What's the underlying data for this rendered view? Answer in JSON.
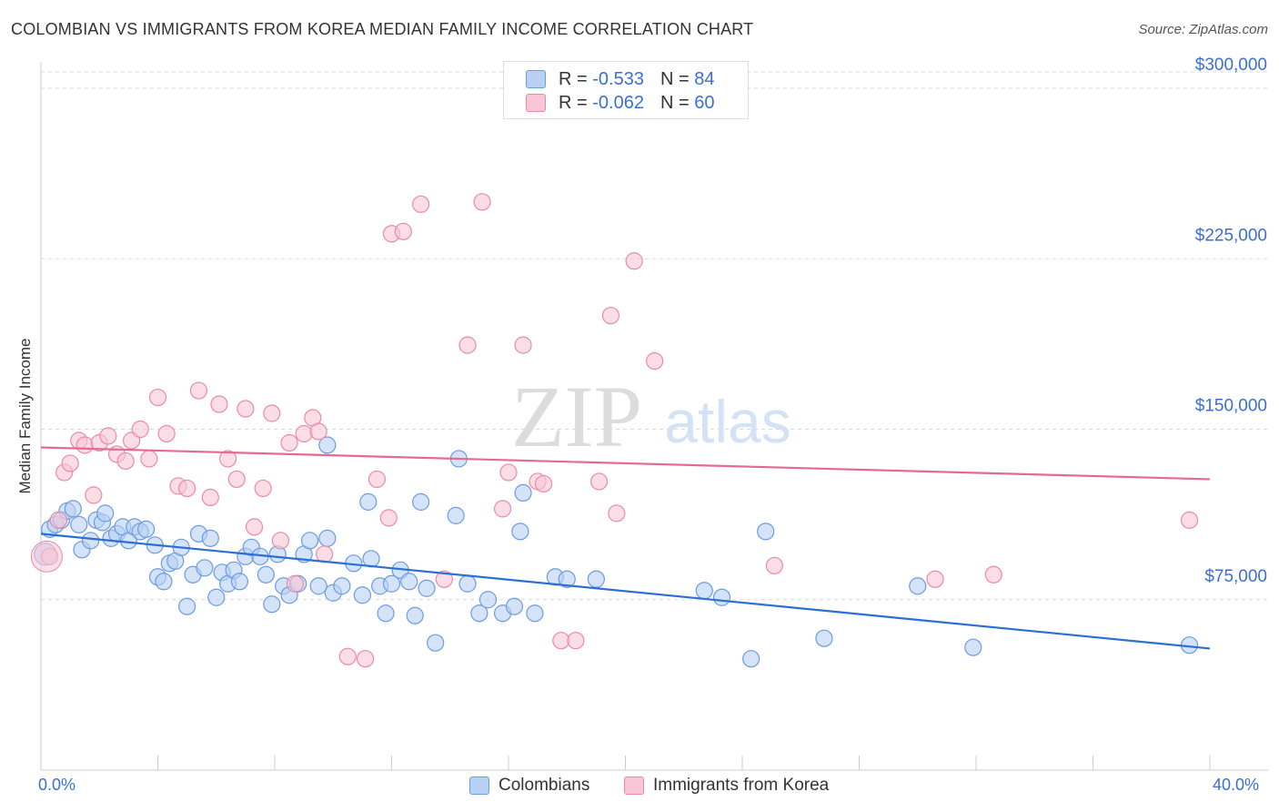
{
  "title": "COLOMBIAN VS IMMIGRANTS FROM KOREA MEDIAN FAMILY INCOME CORRELATION CHART",
  "source": "Source: ZipAtlas.com",
  "watermark": {
    "zip": "ZIP",
    "atlas": "atlas"
  },
  "legend": {
    "r_label": "R =",
    "n_label": "N =",
    "colombians": {
      "r": "-0.533",
      "n": "84"
    },
    "korea": {
      "r": "-0.062",
      "n": "60"
    }
  },
  "bottom_legend": {
    "colombians": "Colombians",
    "korea": "Immigrants from Korea"
  },
  "colors": {
    "blue_fill": "#b8d0f3",
    "blue_stroke": "#6c9be0",
    "blue_line": "#2b6fd4",
    "pink_fill": "#f8c6d5",
    "pink_stroke": "#ea8aa6",
    "pink_line": "#e46a92",
    "axis_text": "#3b6fd1",
    "grid": "#d8d8d8"
  },
  "chart_data": {
    "type": "scatter",
    "title": "COLOMBIAN VS IMMIGRANTS FROM KOREA MEDIAN FAMILY INCOME CORRELATION CHART",
    "xlabel": "",
    "ylabel": "Median Family Income",
    "xlim": [
      0,
      40
    ],
    "ylim": [
      0,
      300000
    ],
    "x_tick_labels": [
      "0.0%",
      "40.0%"
    ],
    "y_ticks": [
      75000,
      150000,
      225000,
      300000
    ],
    "y_tick_labels": [
      "$75,000",
      "$150,000",
      "$225,000",
      "$300,000"
    ],
    "series": [
      {
        "name": "Colombians",
        "r": -0.533,
        "n": 84,
        "trend": {
          "x": [
            0,
            40
          ],
          "y": [
            104000,
            53500
          ]
        },
        "points": [
          [
            0.3,
            106
          ],
          [
            0.5,
            108
          ],
          [
            0.7,
            110
          ],
          [
            0.9,
            114
          ],
          [
            1.1,
            115
          ],
          [
            1.3,
            108
          ],
          [
            1.4,
            97
          ],
          [
            1.7,
            101
          ],
          [
            1.9,
            110
          ],
          [
            2.1,
            109
          ],
          [
            2.2,
            113
          ],
          [
            2.4,
            102
          ],
          [
            2.6,
            104
          ],
          [
            2.8,
            107
          ],
          [
            3.0,
            101
          ],
          [
            3.2,
            107
          ],
          [
            3.4,
            105
          ],
          [
            3.6,
            106
          ],
          [
            3.9,
            99
          ],
          [
            4.0,
            85
          ],
          [
            4.2,
            83
          ],
          [
            4.4,
            91
          ],
          [
            4.6,
            92
          ],
          [
            4.8,
            98
          ],
          [
            5.0,
            72
          ],
          [
            5.2,
            86
          ],
          [
            5.4,
            104
          ],
          [
            5.6,
            89
          ],
          [
            5.8,
            102
          ],
          [
            6.0,
            76
          ],
          [
            6.2,
            87
          ],
          [
            6.4,
            82
          ],
          [
            6.6,
            88
          ],
          [
            6.8,
            83
          ],
          [
            7.0,
            94
          ],
          [
            7.2,
            98
          ],
          [
            7.5,
            94
          ],
          [
            7.7,
            86
          ],
          [
            7.9,
            73
          ],
          [
            8.1,
            95
          ],
          [
            8.3,
            81
          ],
          [
            8.5,
            77
          ],
          [
            8.8,
            82
          ],
          [
            9.0,
            95
          ],
          [
            9.2,
            101
          ],
          [
            9.5,
            81
          ],
          [
            9.8,
            102
          ],
          [
            10.0,
            78
          ],
          [
            10.3,
            81
          ],
          [
            10.7,
            91
          ],
          [
            11.0,
            77
          ],
          [
            11.3,
            93
          ],
          [
            11.6,
            81
          ],
          [
            11.8,
            69
          ],
          [
            12.0,
            82
          ],
          [
            12.3,
            88
          ],
          [
            12.6,
            83
          ],
          [
            12.8,
            68
          ],
          [
            13.0,
            118
          ],
          [
            13.2,
            80
          ],
          [
            13.5,
            56
          ],
          [
            14.2,
            112
          ],
          [
            14.6,
            82
          ],
          [
            15.0,
            69
          ],
          [
            15.3,
            75
          ],
          [
            15.8,
            69
          ],
          [
            16.2,
            72
          ],
          [
            16.5,
            122
          ],
          [
            16.9,
            69
          ],
          [
            17.6,
            85
          ],
          [
            18.0,
            84
          ],
          [
            14.3,
            137
          ],
          [
            11.2,
            118
          ],
          [
            9.8,
            143
          ],
          [
            16.4,
            105
          ],
          [
            19.0,
            84
          ],
          [
            22.7,
            79
          ],
          [
            23.3,
            76
          ],
          [
            24.3,
            49
          ],
          [
            26.8,
            58
          ],
          [
            24.8,
            105
          ],
          [
            30.0,
            81
          ],
          [
            31.9,
            54
          ],
          [
            39.3,
            55
          ]
        ]
      },
      {
        "name": "Immigrants from Korea",
        "r": -0.062,
        "n": 60,
        "trend": {
          "x": [
            0,
            40
          ],
          "y": [
            142000,
            128000
          ]
        },
        "points": [
          [
            0.3,
            94
          ],
          [
            0.6,
            110
          ],
          [
            0.8,
            131
          ],
          [
            1.0,
            135
          ],
          [
            1.3,
            145
          ],
          [
            1.5,
            143
          ],
          [
            1.8,
            121
          ],
          [
            2.0,
            144
          ],
          [
            2.3,
            147
          ],
          [
            2.6,
            139
          ],
          [
            2.9,
            136
          ],
          [
            3.1,
            145
          ],
          [
            3.4,
            150
          ],
          [
            3.7,
            137
          ],
          [
            4.0,
            164
          ],
          [
            4.3,
            148
          ],
          [
            4.7,
            125
          ],
          [
            5.0,
            124
          ],
          [
            5.4,
            167
          ],
          [
            5.8,
            120
          ],
          [
            6.1,
            161
          ],
          [
            6.4,
            137
          ],
          [
            6.7,
            128
          ],
          [
            7.0,
            159
          ],
          [
            7.3,
            107
          ],
          [
            7.6,
            124
          ],
          [
            7.9,
            157
          ],
          [
            8.2,
            101
          ],
          [
            8.5,
            144
          ],
          [
            8.7,
            82
          ],
          [
            9.0,
            148
          ],
          [
            9.3,
            155
          ],
          [
            9.5,
            149
          ],
          [
            9.7,
            95
          ],
          [
            10.5,
            50
          ],
          [
            11.1,
            49
          ],
          [
            11.5,
            128
          ],
          [
            11.9,
            111
          ],
          [
            12.0,
            236
          ],
          [
            12.4,
            237
          ],
          [
            13.0,
            249
          ],
          [
            13.8,
            84
          ],
          [
            14.6,
            187
          ],
          [
            15.1,
            250
          ],
          [
            15.8,
            115
          ],
          [
            16.0,
            131
          ],
          [
            16.5,
            187
          ],
          [
            17.0,
            127
          ],
          [
            17.2,
            126
          ],
          [
            17.8,
            57
          ],
          [
            18.3,
            57
          ],
          [
            19.1,
            127
          ],
          [
            19.5,
            200
          ],
          [
            19.7,
            113
          ],
          [
            20.3,
            224
          ],
          [
            21.0,
            180
          ],
          [
            25.1,
            90
          ],
          [
            30.6,
            84
          ],
          [
            32.6,
            86
          ],
          [
            39.3,
            110
          ]
        ]
      }
    ]
  }
}
